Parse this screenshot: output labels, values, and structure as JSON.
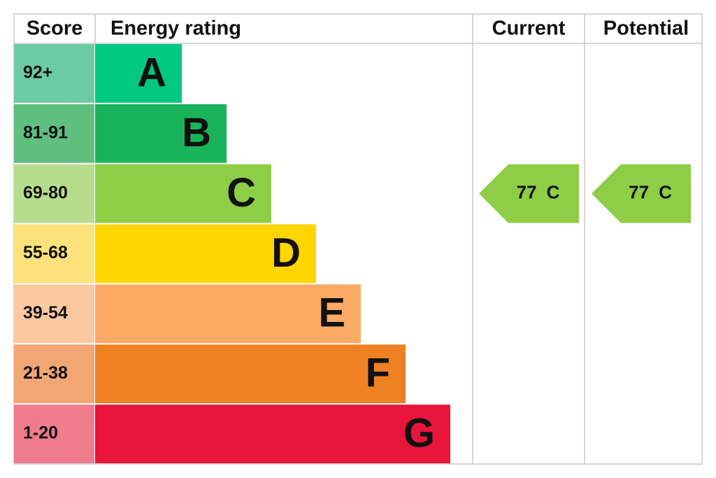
{
  "header": {
    "score": "Score",
    "energy_rating": "Energy rating",
    "current": "Current",
    "potential": "Potential"
  },
  "rows": [
    {
      "score": "92+",
      "rating": "A"
    },
    {
      "score": "81-91",
      "rating": "B"
    },
    {
      "score": "69-80",
      "rating": "C"
    },
    {
      "score": "55-68",
      "rating": "D"
    },
    {
      "score": "39-54",
      "rating": "E"
    },
    {
      "score": "21-38",
      "rating": "F"
    },
    {
      "score": "1-20",
      "rating": "G"
    }
  ],
  "current": {
    "score": 77,
    "rating": "C"
  },
  "potential": {
    "score": 77,
    "rating": "C"
  }
}
